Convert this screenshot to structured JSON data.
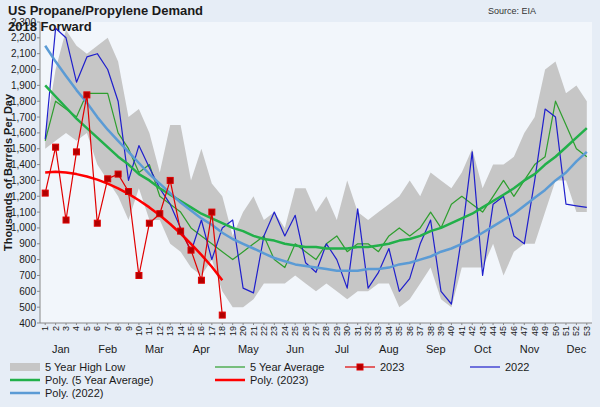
{
  "chart_data": {
    "type": "line",
    "title": "US Propane/Propylene Demand",
    "subtitle": "2018 Forward",
    "annotations": [
      {
        "text": "Source: EIA"
      }
    ],
    "y_label": "Thousands of Barrels Per Day",
    "x_group_labels": [
      {
        "label": "Jan",
        "x": 2.5
      },
      {
        "label": "Feb",
        "x": 7
      },
      {
        "label": "Mar",
        "x": 11.5
      },
      {
        "label": "Apr",
        "x": 16
      },
      {
        "label": "May",
        "x": 20.5
      },
      {
        "label": "Jun",
        "x": 25
      },
      {
        "label": "Jul",
        "x": 29.5
      },
      {
        "label": "Aug",
        "x": 34
      },
      {
        "label": "Sep",
        "x": 38.5
      },
      {
        "label": "Oct",
        "x": 43
      },
      {
        "label": "Nov",
        "x": 47.5
      },
      {
        "label": "Dec",
        "x": 52
      }
    ],
    "x": [
      1,
      2,
      3,
      4,
      5,
      6,
      7,
      8,
      9,
      10,
      11,
      12,
      13,
      14,
      15,
      16,
      17,
      18,
      19,
      20,
      21,
      22,
      23,
      24,
      25,
      26,
      27,
      28,
      29,
      30,
      31,
      32,
      33,
      34,
      35,
      36,
      37,
      38,
      39,
      40,
      41,
      42,
      43,
      44,
      45,
      46,
      47,
      48,
      49,
      50,
      51,
      52,
      53
    ],
    "xlim": [
      0.5,
      53.5
    ],
    "xticks": [
      1,
      2,
      3,
      4,
      5,
      6,
      7,
      8,
      9,
      10,
      11,
      12,
      13,
      14,
      15,
      16,
      17,
      18,
      19,
      20,
      21,
      22,
      23,
      24,
      25,
      26,
      27,
      28,
      29,
      30,
      31,
      32,
      33,
      34,
      35,
      36,
      37,
      38,
      39,
      40,
      41,
      42,
      43,
      44,
      45,
      46,
      47,
      48,
      49,
      50,
      51,
      52,
      53
    ],
    "ylim": [
      400,
      2300
    ],
    "yticks": [
      {
        "value": 2300,
        "label": "2,300"
      },
      {
        "value": 2200,
        "label": "2,200"
      },
      {
        "value": 2100,
        "label": "2,100"
      },
      {
        "value": 2000,
        "label": "2,000"
      },
      {
        "value": 1900,
        "label": "1,900"
      },
      {
        "value": 1800,
        "label": "1,800"
      },
      {
        "value": 1700,
        "label": "1,700"
      },
      {
        "value": 1600,
        "label": "1,600"
      },
      {
        "value": 1500,
        "label": "1,500"
      },
      {
        "value": 1400,
        "label": "1,400"
      },
      {
        "value": 1300,
        "label": "1,300"
      },
      {
        "value": 1200,
        "label": "1,200"
      },
      {
        "value": 1100,
        "label": "1,100"
      },
      {
        "value": 1000,
        "label": "1,000"
      },
      900,
      800,
      700,
      600,
      500,
      400
    ],
    "grid": false,
    "legend": "bottom",
    "series": [
      {
        "name": "5 Year High Low",
        "type": "area",
        "color": "#c6c6c6",
        "values": [
          1600,
          2000,
          2250,
          2150,
          2100,
          2150,
          2200,
          2050,
          1700,
          1750,
          1600,
          1350,
          1650,
          1650,
          1300,
          1500,
          1280,
          1200,
          950,
          1100,
          1200,
          1050,
          1100,
          1000,
          1250,
          1250,
          1100,
          1200,
          1050,
          1300,
          1100,
          1050,
          1100,
          1150,
          1200,
          1300,
          1200,
          1350,
          1300,
          1250,
          1350,
          1500,
          1250,
          1400,
          1400,
          1450,
          1600,
          1700,
          2000,
          2050,
          1850,
          1900,
          1800
        ],
        "low": [
          1500,
          1550,
          1600,
          1550,
          1600,
          1400,
          1300,
          1200,
          1050,
          1250,
          1050,
          1050,
          900,
          850,
          750,
          700,
          800,
          600,
          500,
          500,
          550,
          650,
          650,
          650,
          700,
          650,
          600,
          650,
          600,
          550,
          600,
          600,
          650,
          650,
          500,
          550,
          650,
          750,
          550,
          500,
          750,
          750,
          750,
          900,
          700,
          850,
          900,
          900,
          1100,
          1300,
          1300,
          1100,
          1100
        ]
      },
      {
        "name": "5 Year Average",
        "type": "line",
        "color": "#2e9e2e",
        "line_style": "solid",
        "values": [
          1550,
          1800,
          1750,
          1700,
          1850,
          1850,
          1850,
          1600,
          1500,
          1350,
          1400,
          1200,
          1150,
          1100,
          1000,
          950,
          900,
          850,
          800,
          850,
          900,
          950,
          800,
          750,
          900,
          850,
          800,
          900,
          950,
          850,
          900,
          900,
          850,
          950,
          1000,
          950,
          1000,
          1100,
          1000,
          1150,
          1200,
          1150,
          1100,
          1200,
          1300,
          1200,
          1300,
          1400,
          1450,
          1800,
          1650,
          1500,
          1450
        ]
      },
      {
        "name": "2023",
        "type": "line",
        "color": "#e00000",
        "marker": "square",
        "line_style": "solid",
        "values": [
          1220,
          1510,
          1050,
          1480,
          1840,
          1030,
          1310,
          1340,
          1230,
          700,
          1030,
          1090,
          1300,
          980,
          860,
          670,
          1100,
          450,
          null,
          null,
          null,
          null,
          null,
          null,
          null,
          null,
          null,
          null,
          null,
          null,
          null,
          null,
          null,
          null,
          null,
          null,
          null,
          null,
          null,
          null,
          null,
          null,
          null,
          null,
          null,
          null,
          null,
          null,
          null,
          null,
          null,
          null,
          null
        ]
      },
      {
        "name": "2022",
        "type": "line",
        "color": "#1f1fcc",
        "line_style": "solid",
        "values": [
          1560,
          2260,
          2200,
          1920,
          2080,
          2100,
          2000,
          1800,
          1300,
          1520,
          1380,
          1250,
          1150,
          1000,
          850,
          1050,
          800,
          1000,
          1050,
          620,
          590,
          950,
          1100,
          950,
          1080,
          780,
          720,
          900,
          800,
          620,
          1120,
          620,
          720,
          870,
          600,
          680,
          900,
          1050,
          600,
          520,
          950,
          1480,
          700,
          1150,
          1200,
          950,
          900,
          1300,
          1750,
          1700,
          1150,
          1140,
          1130
        ]
      },
      {
        "name": "Poly. (5 Year Average)",
        "type": "line",
        "color": "#22b04a",
        "line_style": "solid",
        "values": [
          1900,
          1830,
          1760,
          1690,
          1630,
          1570,
          1510,
          1450,
          1400,
          1340,
          1300,
          1250,
          1210,
          1170,
          1130,
          1090,
          1060,
          1030,
          1000,
          980,
          950,
          930,
          920,
          900,
          890,
          880,
          880,
          870,
          870,
          870,
          880,
          880,
          890,
          900,
          920,
          930,
          950,
          980,
          1000,
          1030,
          1060,
          1090,
          1130,
          1170,
          1210,
          1250,
          1300,
          1340,
          1400,
          1450,
          1510,
          1570,
          1630
        ]
      },
      {
        "name": "Poly. (2023)",
        "type": "line",
        "color": "#ff0000",
        "line_style": "solid",
        "values": [
          1350,
          1355,
          1350,
          1340,
          1325,
          1305,
          1280,
          1250,
          1215,
          1175,
          1130,
          1080,
          1025,
          965,
          900,
          830,
          755,
          670,
          null,
          null,
          null,
          null,
          null,
          null,
          null,
          null,
          null,
          null,
          null,
          null,
          null,
          null,
          null,
          null,
          null,
          null,
          null,
          null,
          null,
          null,
          null,
          null,
          null,
          null,
          null,
          null,
          null,
          null,
          null,
          null,
          null,
          null,
          null
        ]
      },
      {
        "name": "Poly. (2022)",
        "type": "line",
        "color": "#5b9bd5",
        "line_style": "solid",
        "values": [
          2150,
          2050,
          1960,
          1870,
          1790,
          1700,
          1620,
          1550,
          1480,
          1410,
          1340,
          1280,
          1220,
          1160,
          1110,
          1060,
          1020,
          970,
          930,
          900,
          870,
          840,
          810,
          790,
          770,
          760,
          750,
          740,
          730,
          730,
          730,
          740,
          740,
          750,
          770,
          780,
          800,
          820,
          850,
          870,
          900,
          930,
          970,
          1010,
          1050,
          1090,
          1140,
          1190,
          1240,
          1300,
          1350,
          1420,
          1480
        ]
      }
    ]
  }
}
